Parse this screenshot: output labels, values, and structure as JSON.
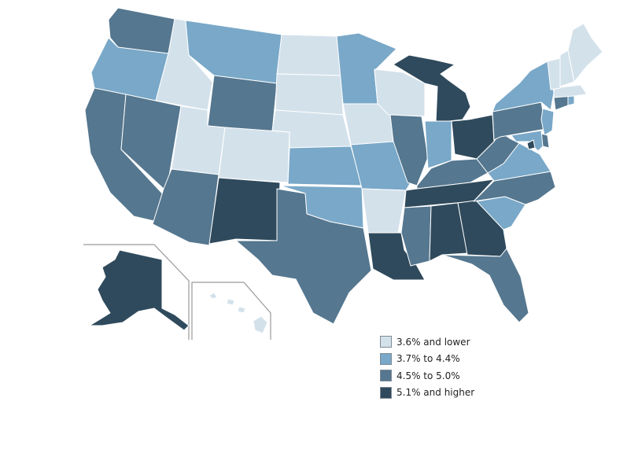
{
  "legend": {
    "items": [
      {
        "label": "3.6% and lower",
        "color": "#d3e1eb"
      },
      {
        "label": "3.7% to 4.4%",
        "color": "#79a8c8"
      },
      {
        "label": "4.5% to 5.0%",
        "color": "#55778f"
      },
      {
        "label": "5.1% and higher",
        "color": "#2f4a5c"
      }
    ]
  },
  "states": [
    {
      "abbr": "WA",
      "bin": 2
    },
    {
      "abbr": "OR",
      "bin": 1
    },
    {
      "abbr": "CA",
      "bin": 2
    },
    {
      "abbr": "NV",
      "bin": 2
    },
    {
      "abbr": "ID",
      "bin": 0
    },
    {
      "abbr": "MT",
      "bin": 1
    },
    {
      "abbr": "WY",
      "bin": 2
    },
    {
      "abbr": "UT",
      "bin": 0
    },
    {
      "abbr": "AZ",
      "bin": 2
    },
    {
      "abbr": "CO",
      "bin": 0
    },
    {
      "abbr": "NM",
      "bin": 3
    },
    {
      "abbr": "ND",
      "bin": 0
    },
    {
      "abbr": "SD",
      "bin": 0
    },
    {
      "abbr": "NE",
      "bin": 0
    },
    {
      "abbr": "KS",
      "bin": 1
    },
    {
      "abbr": "OK",
      "bin": 1
    },
    {
      "abbr": "TX",
      "bin": 2
    },
    {
      "abbr": "MN",
      "bin": 1
    },
    {
      "abbr": "IA",
      "bin": 0
    },
    {
      "abbr": "MO",
      "bin": 1
    },
    {
      "abbr": "AR",
      "bin": 0
    },
    {
      "abbr": "LA",
      "bin": 3
    },
    {
      "abbr": "WI",
      "bin": 0
    },
    {
      "abbr": "IL",
      "bin": 2
    },
    {
      "abbr": "MI",
      "bin": 3
    },
    {
      "abbr": "IN",
      "bin": 1
    },
    {
      "abbr": "OH",
      "bin": 3
    },
    {
      "abbr": "KY",
      "bin": 2
    },
    {
      "abbr": "TN",
      "bin": 3
    },
    {
      "abbr": "MS",
      "bin": 2
    },
    {
      "abbr": "AL",
      "bin": 3
    },
    {
      "abbr": "GA",
      "bin": 3
    },
    {
      "abbr": "FL",
      "bin": 2
    },
    {
      "abbr": "SC",
      "bin": 1
    },
    {
      "abbr": "NC",
      "bin": 2
    },
    {
      "abbr": "VA",
      "bin": 1
    },
    {
      "abbr": "WV",
      "bin": 2
    },
    {
      "abbr": "PA",
      "bin": 2
    },
    {
      "abbr": "NY",
      "bin": 1
    },
    {
      "abbr": "VT",
      "bin": 0
    },
    {
      "abbr": "NH",
      "bin": 0
    },
    {
      "abbr": "ME",
      "bin": 0
    },
    {
      "abbr": "MA",
      "bin": 0
    },
    {
      "abbr": "RI",
      "bin": 1
    },
    {
      "abbr": "CT",
      "bin": 2
    },
    {
      "abbr": "NJ",
      "bin": 1
    },
    {
      "abbr": "DE",
      "bin": 2
    },
    {
      "abbr": "MD",
      "bin": 1
    },
    {
      "abbr": "DC",
      "bin": 3
    },
    {
      "abbr": "AK",
      "bin": 3
    },
    {
      "abbr": "HI",
      "bin": 0
    }
  ]
}
